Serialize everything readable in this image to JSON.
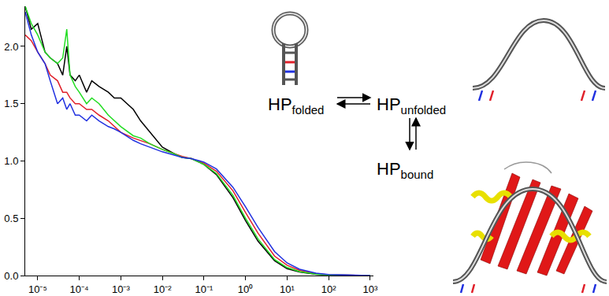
{
  "chart_data": {
    "type": "line",
    "log": "x",
    "grid": false,
    "x": [
      5e-06,
      7e-06,
      1e-05,
      1.5e-05,
      2e-05,
      3e-05,
      4e-05,
      5e-05,
      6e-05,
      8e-05,
      0.0001,
      0.00015,
      0.0002,
      0.0003,
      0.0005,
      0.0007,
      0.001,
      0.002,
      0.003,
      0.005,
      0.01,
      0.02,
      0.03,
      0.05,
      0.1,
      0.2,
      0.5,
      1,
      2,
      5,
      10,
      20,
      50,
      100,
      1000
    ],
    "series": [
      {
        "color": "#000000",
        "values": [
          2.35,
          2.15,
          2.2,
          1.95,
          1.9,
          1.85,
          1.75,
          2.0,
          1.75,
          1.7,
          1.75,
          1.6,
          1.7,
          1.65,
          1.6,
          1.55,
          1.55,
          1.45,
          1.35,
          1.25,
          1.12,
          1.06,
          1.03,
          1.02,
          0.97,
          0.88,
          0.68,
          0.48,
          0.3,
          0.13,
          0.06,
          0.03,
          0.01,
          0.005,
          0
        ]
      },
      {
        "color": "#e0202a",
        "values": [
          2.1,
          2.05,
          1.95,
          1.85,
          1.75,
          1.7,
          1.6,
          1.6,
          1.55,
          1.5,
          1.5,
          1.45,
          1.45,
          1.4,
          1.35,
          1.3,
          1.25,
          1.2,
          1.18,
          1.15,
          1.1,
          1.06,
          1.04,
          1.02,
          0.98,
          0.91,
          0.74,
          0.55,
          0.37,
          0.17,
          0.09,
          0.045,
          0.015,
          0.007,
          0
        ]
      },
      {
        "color": "#22dd22",
        "values": [
          2.35,
          2.2,
          2.1,
          1.95,
          1.9,
          1.85,
          1.9,
          2.15,
          1.75,
          1.65,
          1.6,
          1.5,
          1.55,
          1.5,
          1.4,
          1.35,
          1.3,
          1.22,
          1.2,
          1.15,
          1.1,
          1.06,
          1.03,
          1.02,
          0.97,
          0.89,
          0.7,
          0.5,
          0.32,
          0.14,
          0.07,
          0.035,
          0.012,
          0.006,
          0
        ]
      },
      {
        "color": "#2030e0",
        "values": [
          2.3,
          2.1,
          1.95,
          1.85,
          1.7,
          1.5,
          1.55,
          1.45,
          1.5,
          1.4,
          1.4,
          1.35,
          1.4,
          1.35,
          1.3,
          1.28,
          1.25,
          1.18,
          1.15,
          1.12,
          1.08,
          1.05,
          1.03,
          1.02,
          0.99,
          0.93,
          0.77,
          0.6,
          0.42,
          0.21,
          0.11,
          0.055,
          0.02,
          0.008,
          0
        ]
      }
    ],
    "xlim": [
      5e-06,
      1200
    ],
    "xticks": [
      {
        "value": 1e-05,
        "label": "10⁻⁵"
      },
      {
        "value": 0.0001,
        "label": "10⁻⁴"
      },
      {
        "value": 0.001,
        "label": "10⁻³"
      },
      {
        "value": 0.01,
        "label": "10⁻²"
      },
      {
        "value": 0.1,
        "label": "10⁻¹"
      },
      {
        "value": 1,
        "label": "10⁰"
      },
      {
        "value": 10,
        "label": "10¹"
      },
      {
        "value": 100,
        "label": "10²"
      },
      {
        "value": 1000,
        "label": "10³"
      }
    ],
    "ylim": [
      0,
      2.35
    ],
    "yticks": [
      {
        "value": 0,
        "label": "0.0"
      },
      {
        "value": 0.5,
        "label": "0.5"
      },
      {
        "value": 1,
        "label": "1.0"
      },
      {
        "value": 1.5,
        "label": "1.5"
      },
      {
        "value": 2,
        "label": "2.0"
      }
    ]
  },
  "diagram": {
    "states": [
      {
        "label": "HP",
        "subscript": "folded"
      },
      {
        "label": "HP",
        "subscript": "unfolded"
      },
      {
        "label": "HP",
        "subscript": "bound"
      }
    ]
  }
}
